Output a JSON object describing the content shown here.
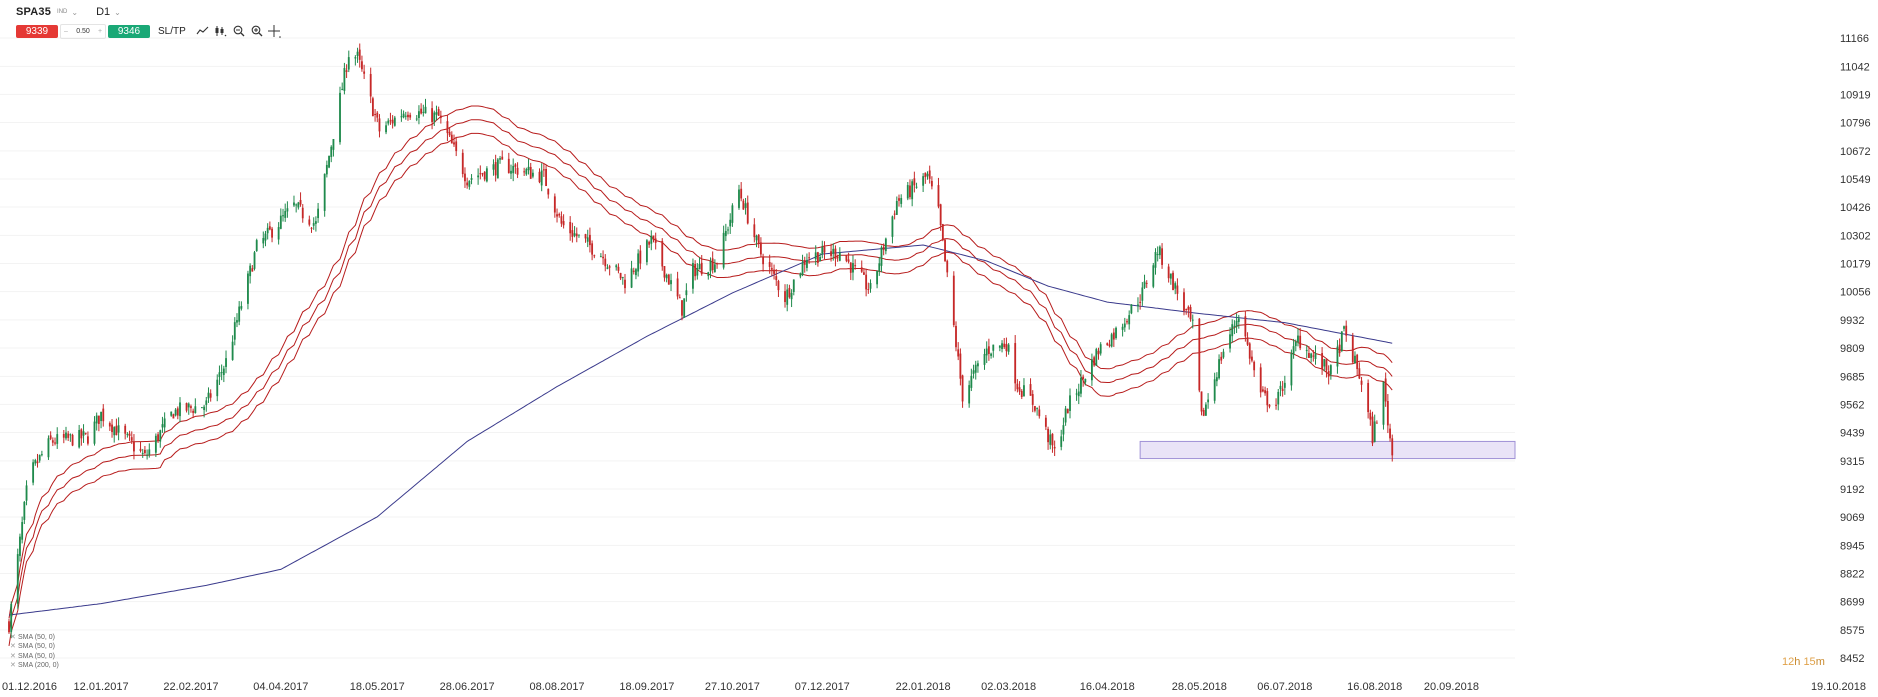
{
  "header": {
    "symbol": "SPA35",
    "symbol_sub": "IND",
    "timeframe": "D1",
    "sell_price": "9339",
    "volume": "0.50",
    "buy_price": "9346",
    "sltp_label": "SL/TP"
  },
  "toolbar_icons": [
    "line-chart-icon",
    "candles-icon",
    "zoom-out-icon",
    "zoom-in-icon",
    "crosshair-icon"
  ],
  "indicators": [
    {
      "label": "SMA (50, 0)"
    },
    {
      "label": "SMA (50, 0)"
    },
    {
      "label": "SMA (50, 0)"
    },
    {
      "label": "SMA (200, 0)"
    }
  ],
  "timer": {
    "hours": "12",
    "h_unit": "h",
    "minutes": "15",
    "m_unit": "m"
  },
  "colors": {
    "up": "#1f8a4c",
    "down": "#c62828",
    "sma50": "#b71c1c",
    "sma200": "#3a3a8c",
    "zone_fill": "#e3dcf5",
    "zone_stroke": "#9f90d6"
  },
  "chart_data": {
    "type": "candlestick",
    "ylim": [
      8452,
      11166
    ],
    "y_ticks": [
      11166,
      11042,
      10919,
      10796,
      10672,
      10549,
      10426,
      10302,
      10179,
      10056,
      9932,
      9809,
      9685,
      9562,
      9439,
      9315,
      9192,
      9069,
      8945,
      8822,
      8699,
      8575,
      8452
    ],
    "x_ticks": [
      "01.12.2016",
      "12.01.2017",
      "22.02.2017",
      "04.04.2017",
      "18.05.2017",
      "28.06.2017",
      "08.08.2017",
      "18.09.2017",
      "27.10.2017",
      "07.12.2017",
      "22.01.2018",
      "02.03.2018",
      "16.04.2018",
      "28.05.2018",
      "06.07.2018",
      "16.08.2018",
      "20.09.2018",
      "19.10.2018"
    ],
    "x_start": "2016-12-01",
    "x_end": "2018-10-19",
    "last_date": "2018-08-24",
    "close_anchors": [
      {
        "d": "2016-12-01",
        "v": 8600
      },
      {
        "d": "2016-12-10",
        "v": 9250
      },
      {
        "d": "2016-12-20",
        "v": 9400
      },
      {
        "d": "2017-01-06",
        "v": 9420
      },
      {
        "d": "2017-01-12",
        "v": 9520
      },
      {
        "d": "2017-02-01",
        "v": 9330
      },
      {
        "d": "2017-02-14",
        "v": 9530
      },
      {
        "d": "2017-03-01",
        "v": 9560
      },
      {
        "d": "2017-03-10",
        "v": 9750
      },
      {
        "d": "2017-03-24",
        "v": 10250
      },
      {
        "d": "2017-04-10",
        "v": 10430
      },
      {
        "d": "2017-04-20",
        "v": 10350
      },
      {
        "d": "2017-04-28",
        "v": 10750
      },
      {
        "d": "2017-05-05",
        "v": 11100
      },
      {
        "d": "2017-05-09",
        "v": 11080
      },
      {
        "d": "2017-05-19",
        "v": 10760
      },
      {
        "d": "2017-05-31",
        "v": 10850
      },
      {
        "d": "2017-06-15",
        "v": 10820
      },
      {
        "d": "2017-06-28",
        "v": 10550
      },
      {
        "d": "2017-07-14",
        "v": 10610
      },
      {
        "d": "2017-08-02",
        "v": 10560
      },
      {
        "d": "2017-08-10",
        "v": 10350
      },
      {
        "d": "2017-08-28",
        "v": 10220
      },
      {
        "d": "2017-09-08",
        "v": 10100
      },
      {
        "d": "2017-09-20",
        "v": 10280
      },
      {
        "d": "2017-10-04",
        "v": 9980
      },
      {
        "d": "2017-10-09",
        "v": 10150
      },
      {
        "d": "2017-10-20",
        "v": 10190
      },
      {
        "d": "2017-10-30",
        "v": 10500
      },
      {
        "d": "2017-11-08",
        "v": 10240
      },
      {
        "d": "2017-11-20",
        "v": 10030
      },
      {
        "d": "2017-11-30",
        "v": 10210
      },
      {
        "d": "2017-12-15",
        "v": 10230
      },
      {
        "d": "2017-12-29",
        "v": 10060
      },
      {
        "d": "2018-01-10",
        "v": 10450
      },
      {
        "d": "2018-01-24",
        "v": 10560
      },
      {
        "d": "2018-01-29",
        "v": 10400
      },
      {
        "d": "2018-02-05",
        "v": 9900
      },
      {
        "d": "2018-02-09",
        "v": 9600
      },
      {
        "d": "2018-02-20",
        "v": 9800
      },
      {
        "d": "2018-03-01",
        "v": 9830
      },
      {
        "d": "2018-03-06",
        "v": 9650
      },
      {
        "d": "2018-03-14",
        "v": 9560
      },
      {
        "d": "2018-03-23",
        "v": 9350
      },
      {
        "d": "2018-03-29",
        "v": 9550
      },
      {
        "d": "2018-04-12",
        "v": 9800
      },
      {
        "d": "2018-04-20",
        "v": 9880
      },
      {
        "d": "2018-05-02",
        "v": 10050
      },
      {
        "d": "2018-05-09",
        "v": 10240
      },
      {
        "d": "2018-05-18",
        "v": 10050
      },
      {
        "d": "2018-05-25",
        "v": 9900
      },
      {
        "d": "2018-05-29",
        "v": 9500
      },
      {
        "d": "2018-06-08",
        "v": 9800
      },
      {
        "d": "2018-06-15",
        "v": 9960
      },
      {
        "d": "2018-06-25",
        "v": 9600
      },
      {
        "d": "2018-07-02",
        "v": 9560
      },
      {
        "d": "2018-07-12",
        "v": 9850
      },
      {
        "d": "2018-07-19",
        "v": 9770
      },
      {
        "d": "2018-07-27",
        "v": 9700
      },
      {
        "d": "2018-08-02",
        "v": 9880
      },
      {
        "d": "2018-08-10",
        "v": 9660
      },
      {
        "d": "2018-08-15",
        "v": 9420
      },
      {
        "d": "2018-08-20",
        "v": 9640
      },
      {
        "d": "2018-08-24",
        "v": 9340
      }
    ],
    "sma200_anchors": [
      {
        "d": "2016-12-01",
        "v": 8640
      },
      {
        "d": "2017-01-12",
        "v": 8690
      },
      {
        "d": "2017-03-01",
        "v": 8770
      },
      {
        "d": "2017-04-04",
        "v": 8840
      },
      {
        "d": "2017-05-18",
        "v": 9070
      },
      {
        "d": "2017-06-28",
        "v": 9400
      },
      {
        "d": "2017-08-08",
        "v": 9640
      },
      {
        "d": "2017-09-18",
        "v": 9860
      },
      {
        "d": "2017-10-27",
        "v": 10050
      },
      {
        "d": "2017-12-07",
        "v": 10220
      },
      {
        "d": "2018-01-22",
        "v": 10260
      },
      {
        "d": "2018-02-20",
        "v": 10190
      },
      {
        "d": "2018-03-20",
        "v": 10080
      },
      {
        "d": "2018-04-16",
        "v": 10010
      },
      {
        "d": "2018-05-28",
        "v": 9960
      },
      {
        "d": "2018-07-06",
        "v": 9920
      },
      {
        "d": "2018-08-24",
        "v": 9830
      }
    ],
    "support_zone": {
      "from": "2018-05-01",
      "to": "2018-10-19",
      "low": 9325,
      "high": 9400
    }
  }
}
